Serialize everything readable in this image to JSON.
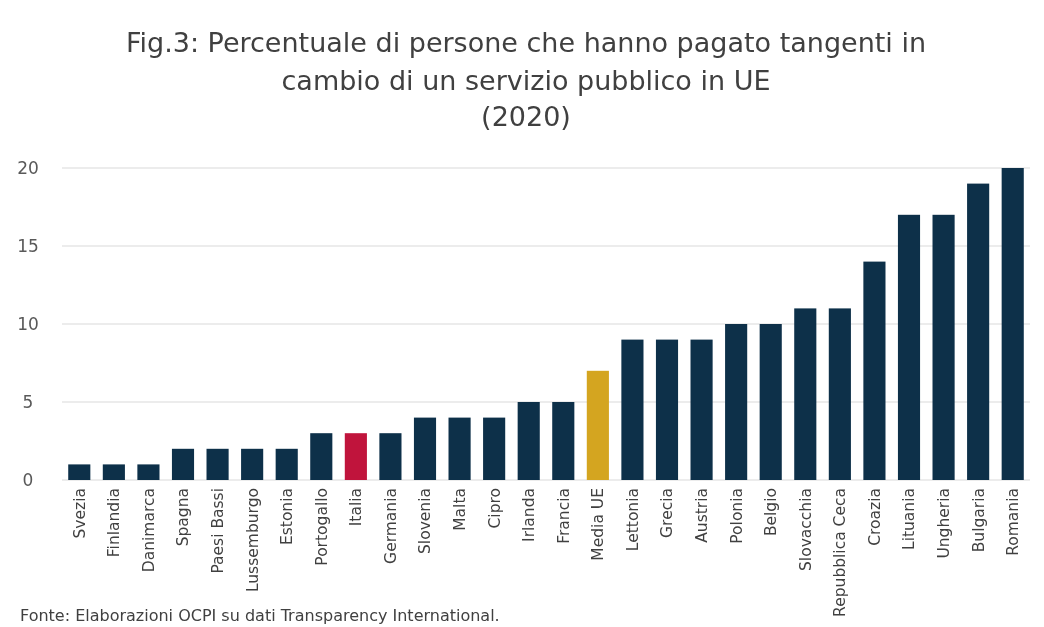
{
  "chart_data": {
    "type": "bar",
    "title": "Fig.3: Percentuale di persone che hanno pagato tangenti in cambio di un servizio pubblico in UE",
    "subtitle": "(2020)",
    "categories": [
      "Svezia",
      "Finlandia",
      "Danimarca",
      "Spagna",
      "Paesi Bassi",
      "Lussemburgo",
      "Estonia",
      "Portogallo",
      "Italia",
      "Germania",
      "Slovenia",
      "Malta",
      "Cipro",
      "Irlanda",
      "Francia",
      "Media UE",
      "Lettonia",
      "Grecia",
      "Austria",
      "Polonia",
      "Belgio",
      "Slovacchia",
      "Repubblica Ceca",
      "Croazia",
      "Lituania",
      "Ungheria",
      "Bulgaria",
      "Romania"
    ],
    "values": [
      1,
      1,
      1,
      2,
      2,
      2,
      2,
      3,
      3,
      3,
      4,
      4,
      4,
      5,
      5,
      7,
      9,
      9,
      9,
      10,
      10,
      11,
      11,
      14,
      17,
      17,
      19,
      20
    ],
    "colors": [
      "#0d3049",
      "#0d3049",
      "#0d3049",
      "#0d3049",
      "#0d3049",
      "#0d3049",
      "#0d3049",
      "#0d3049",
      "#c0143c",
      "#0d3049",
      "#0d3049",
      "#0d3049",
      "#0d3049",
      "#0d3049",
      "#0d3049",
      "#d4a520",
      "#0d3049",
      "#0d3049",
      "#0d3049",
      "#0d3049",
      "#0d3049",
      "#0d3049",
      "#0d3049",
      "#0d3049",
      "#0d3049",
      "#0d3049",
      "#0d3049",
      "#0d3049"
    ],
    "ylim": [
      0,
      20
    ],
    "yticks": [
      0,
      5,
      10,
      15,
      20
    ],
    "grid": "y",
    "annotations": [
      "Fonte: Elaborazioni OCPI su dati Transparency International."
    ]
  }
}
